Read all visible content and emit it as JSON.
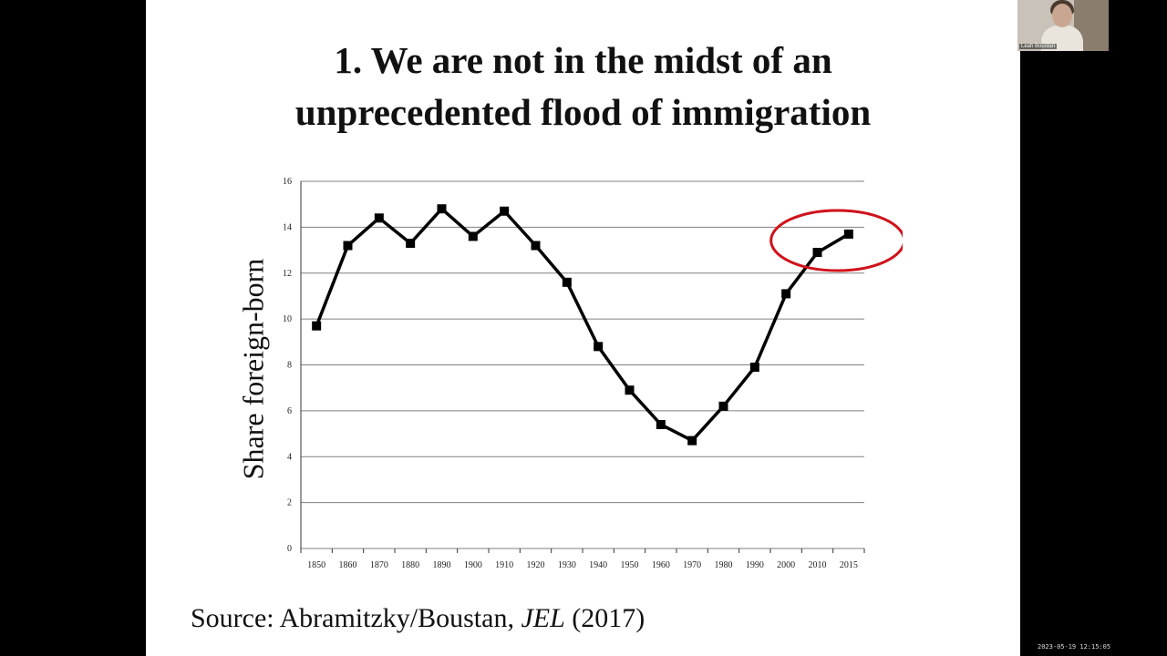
{
  "slide": {
    "title_line1": "1. We are not in the midst of  an",
    "title_line2": "unprecedented flood of  immigration",
    "y_axis_label": "Share foreign-born",
    "source_prefix": "Source: Abramitzky/Boustan, ",
    "source_journal": "JEL",
    "source_year": " (2017)"
  },
  "video": {
    "participant_name": "Leah Boustan",
    "timestamp": "2023-05-19 12:15:05"
  },
  "colors": {
    "line": "#000000",
    "grid": "#808080",
    "highlight": "#d0121b",
    "slide_bg": "#ffffff",
    "frame_bg": "#000000"
  },
  "chart_data": {
    "type": "line",
    "categories": [
      "1850",
      "1860",
      "1870",
      "1880",
      "1890",
      "1900",
      "1910",
      "1920",
      "1930",
      "1940",
      "1950",
      "1960",
      "1970",
      "1980",
      "1990",
      "2000",
      "2010",
      "2015"
    ],
    "values": [
      9.7,
      13.2,
      14.4,
      13.3,
      14.8,
      13.6,
      14.7,
      13.2,
      11.6,
      8.8,
      6.9,
      5.4,
      4.7,
      6.2,
      7.9,
      11.1,
      12.9,
      13.7
    ],
    "y_ticks": [
      0,
      2,
      4,
      6,
      8,
      10,
      12,
      14,
      16
    ],
    "ylim": [
      0,
      16
    ],
    "ylabel": "Share foreign-born",
    "xlabel": "",
    "grid": true,
    "highlight": {
      "from_category": "2010",
      "to_category": "2015",
      "shape": "ellipse"
    }
  }
}
